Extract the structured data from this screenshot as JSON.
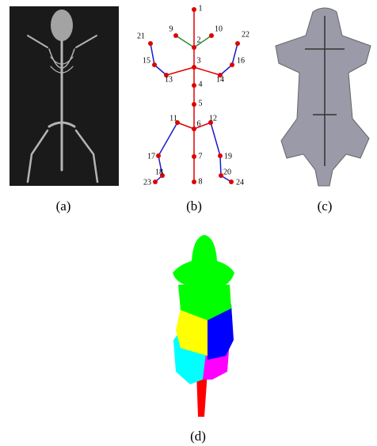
{
  "panels": [
    {
      "caption": "(a)"
    },
    {
      "caption": "(b)"
    },
    {
      "caption": "(c)"
    },
    {
      "caption": "(d)"
    }
  ],
  "skeleton": {
    "nodes": [
      "1",
      "2",
      "3",
      "4",
      "5",
      "6",
      "7",
      "8",
      "9",
      "10",
      "11",
      "12",
      "13",
      "14",
      "15",
      "16",
      "17",
      "18",
      "19",
      "20",
      "21",
      "22",
      "23",
      "24"
    ]
  }
}
